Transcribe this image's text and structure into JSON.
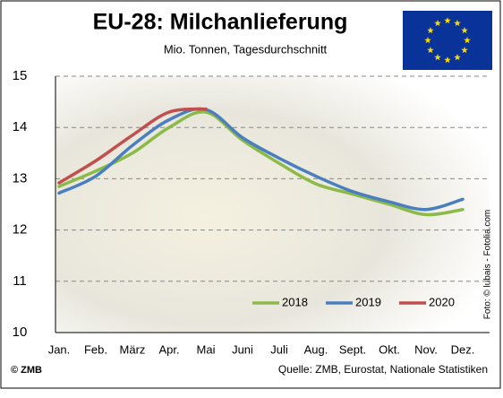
{
  "chart_data": {
    "type": "line",
    "title": "EU-28: Milchanlieferung",
    "subtitle": "Mio. Tonnen, Tagesdurchschnitt",
    "categories": [
      "Jan.",
      "Feb.",
      "März",
      "Apr.",
      "Mai",
      "Juni",
      "Juli",
      "Aug.",
      "Sept.",
      "Okt.",
      "Nov.",
      "Dez."
    ],
    "series": [
      {
        "name": "2018",
        "color": "#8cba48",
        "values": [
          12.85,
          13.15,
          13.5,
          14.0,
          14.3,
          13.75,
          13.3,
          12.9,
          12.7,
          12.5,
          12.3,
          12.4
        ]
      },
      {
        "name": "2019",
        "color": "#4a7fbf",
        "values": [
          12.72,
          13.05,
          13.65,
          14.15,
          14.35,
          13.8,
          13.4,
          13.05,
          12.75,
          12.55,
          12.4,
          12.6
        ]
      },
      {
        "name": "2020",
        "color": "#c0504d",
        "values": [
          12.92,
          13.35,
          13.85,
          14.3,
          14.36,
          null,
          null,
          null,
          null,
          null,
          null,
          null
        ]
      }
    ],
    "ylim": [
      10,
      15
    ],
    "yticks": [
      10,
      11,
      12,
      13,
      14,
      15
    ],
    "grid": true,
    "legend": "bottom-right",
    "credit": "© ZMB",
    "source": "Quelle: ZMB, Eurostat,  Nationale Statistiken",
    "photo_credit": "Foto: © lubais - Fotolia.com"
  }
}
